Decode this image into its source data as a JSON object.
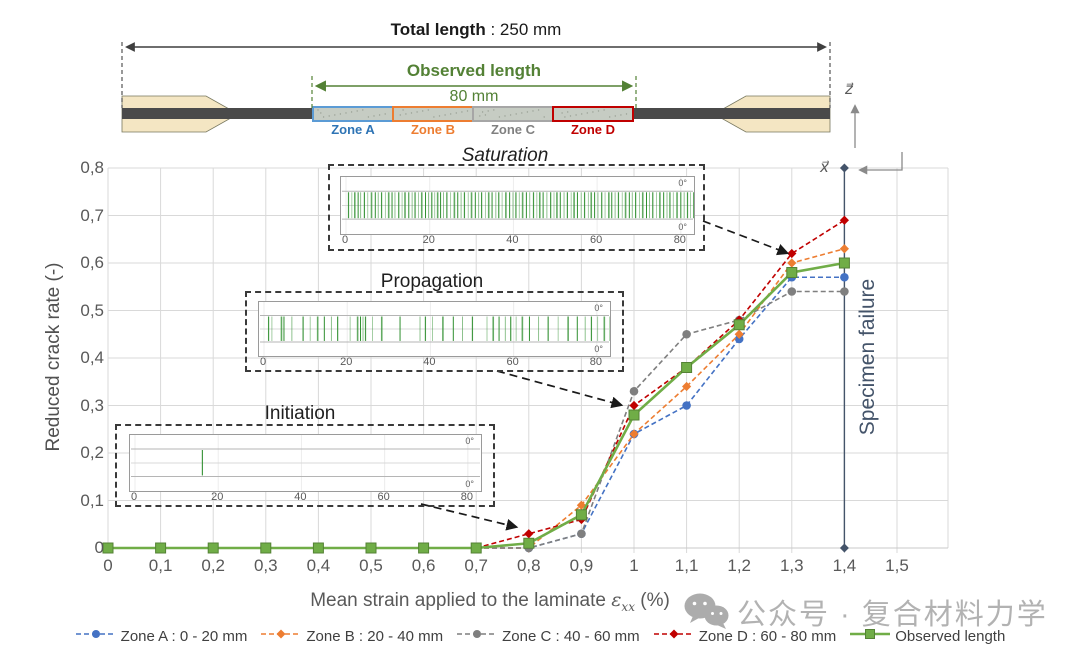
{
  "specimen": {
    "total_length_label": "Total length",
    "total_length_value": " : 250 mm",
    "observed_length_label": "Observed length",
    "observed_length_value": "80 mm",
    "zones": [
      {
        "label": "Zone A",
        "border_color": "#5B9BD5",
        "label_color": "#2E74B5"
      },
      {
        "label": "Zone B",
        "border_color": "#ED7D31",
        "label_color": "#ED7D31"
      },
      {
        "label": "Zone C",
        "border_color": "#A6A6A6",
        "label_color": "#808080"
      },
      {
        "label": "Zone D",
        "border_color": "#C00000",
        "label_color": "#C00000"
      }
    ],
    "tab_color": "#F4E6C3",
    "bar_color": "#4A4A4A",
    "axis_z_label": "z⃗",
    "axis_x_label": "x⃗"
  },
  "insets": [
    {
      "title": "Saturation",
      "ply_label": "0°",
      "ticks": [
        "0",
        "20",
        "40",
        "60",
        "80"
      ],
      "cracks": [
        0.6,
        1.4,
        2.1,
        2.9,
        3.5,
        4.4,
        5.2,
        6.1,
        7,
        7.7,
        8.5,
        9.4,
        10.2,
        11,
        11.7,
        12.6,
        13.4,
        14.1,
        15,
        15.8,
        16.5,
        17.3,
        18.1,
        19,
        19.7,
        20.5,
        21.2,
        21.9,
        22.6,
        23.3,
        24.1,
        25,
        25.9,
        26.7,
        27.5,
        28.3,
        29.2,
        30,
        30.9,
        31.7,
        32.4,
        33.3,
        34.1,
        34.9,
        35.8,
        36.5,
        37.3,
        38.2,
        39.1,
        39.9,
        40.6,
        41.4,
        42.2,
        43.1,
        43.9,
        44.8,
        45.6,
        46.3,
        47.1,
        48,
        48.9,
        49.7,
        50.4,
        51.2,
        52.1,
        52.9,
        53.8,
        54.5,
        55.3,
        56.2,
        57,
        57.9,
        58.6,
        59.4,
        60.2,
        61.1,
        61.9,
        62.8,
        63.5,
        64.3,
        65.1,
        66,
        66.8,
        67.7,
        68.4,
        69.2,
        70.1,
        70.9,
        71.8,
        72.5,
        73.3,
        74.2,
        75,
        75.9,
        76.7,
        77.4,
        78.2,
        79.1,
        80,
        80.8,
        81.6,
        82.3,
        83.1
      ]
    },
    {
      "title": "Propagation",
      "ply_label": "0°",
      "ticks": [
        "0",
        "20",
        "40",
        "60",
        "80"
      ],
      "cracks": [
        1.1,
        1.9,
        4.2,
        4.8,
        6.7,
        9.4,
        11.1,
        12.9,
        14.5,
        16.2,
        17.7,
        20.7,
        22.5,
        23.2,
        23.8,
        24.4,
        26.1,
        28.3,
        32.7,
        37.5,
        38.8,
        40.5,
        43,
        45.5,
        47.7,
        50.1,
        53.6,
        55.1,
        56.5,
        58,
        59.3,
        60.6,
        62.1,
        63.8,
        66,
        68.3,
        70.7,
        73.1,
        75.3,
        77.2,
        78.7,
        80.2,
        81.8,
        83.2
      ]
    },
    {
      "title": "Initiation",
      "ply_label": "0°",
      "ticks": [
        "0",
        "20",
        "40",
        "60",
        "80"
      ],
      "cracks": [
        16.2
      ]
    }
  ],
  "chart_data": {
    "type": "line",
    "x": [
      0,
      0.1,
      0.2,
      0.3,
      0.4,
      0.5,
      0.6,
      0.7,
      0.8,
      0.9,
      1.0,
      1.1,
      1.2,
      1.3,
      1.4
    ],
    "x_tick_labels": [
      "0",
      "0,1",
      "0,2",
      "0,3",
      "0,4",
      "0,5",
      "0,6",
      "0,7",
      "0,8",
      "0,9",
      "1",
      "1,1",
      "1,2",
      "1,3",
      "1,4",
      "1,5"
    ],
    "y_tick_labels": [
      "0",
      "0,1",
      "0,2",
      "0,3",
      "0,4",
      "0,5",
      "0,6",
      "0,7",
      "0,8"
    ],
    "xlim": [
      0,
      1.5
    ],
    "ylim": [
      0,
      0.8
    ],
    "grid": true,
    "legend_position": "bottom",
    "xlabel": "Mean strain applied to the laminate εxx (%)",
    "xlabel_prefix": "Mean strain applied to the laminate ",
    "xlabel_symbol": "ε",
    "xlabel_sub": "xx",
    "xlabel_suffix": " (%)",
    "ylabel": "Reduced crack rate (-)",
    "series": [
      {
        "name": "Zone A : 0 - 20 mm",
        "color": "#4472C4",
        "marker": "circle",
        "dashed": true,
        "values": [
          0,
          0,
          0,
          0,
          0,
          0,
          0,
          0,
          0,
          0.03,
          0.24,
          0.3,
          0.44,
          0.57,
          0.57
        ]
      },
      {
        "name": "Zone B : 20 - 40 mm",
        "color": "#ED7D31",
        "marker": "diamond",
        "dashed": true,
        "values": [
          0,
          0,
          0,
          0,
          0,
          0,
          0,
          0,
          0,
          0.09,
          0.24,
          0.34,
          0.45,
          0.6,
          0.63
        ]
      },
      {
        "name": "Zone C : 40 - 60 mm",
        "color": "#7F7F7F",
        "marker": "circle",
        "dashed": true,
        "values": [
          0,
          0,
          0,
          0,
          0,
          0,
          0,
          0,
          0,
          0.03,
          0.33,
          0.45,
          0.48,
          0.54,
          0.54
        ]
      },
      {
        "name": "Zone D : 60 - 80 mm",
        "color": "#C00000",
        "marker": "diamond",
        "dashed": true,
        "values": [
          0,
          0,
          0,
          0,
          0,
          0,
          0,
          0,
          0.03,
          0.06,
          0.3,
          0.38,
          0.48,
          0.62,
          0.69
        ]
      },
      {
        "name": "Observed length",
        "color": "#70AD47",
        "marker": "square",
        "dashed": false,
        "values": [
          0,
          0,
          0,
          0,
          0,
          0,
          0,
          0,
          0.01,
          0.07,
          0.28,
          0.38,
          0.47,
          0.58,
          0.6
        ]
      }
    ],
    "annotation": {
      "label": "Specimen failure",
      "x": 1.4,
      "color": "#44546A"
    },
    "stage_labels": [
      "Initiation",
      "Propagation",
      "Saturation"
    ]
  },
  "watermark": {
    "text": "公众号 · 复合材料力学"
  }
}
